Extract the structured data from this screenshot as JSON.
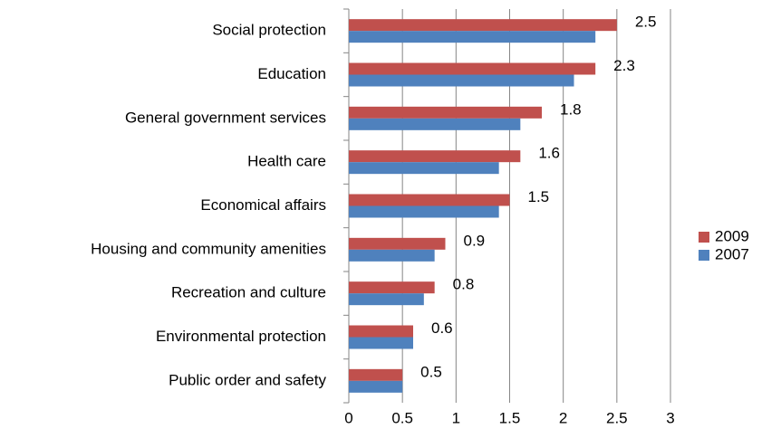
{
  "chart_data": {
    "type": "hbar",
    "categories": [
      "Social protection",
      "Education",
      "General government services",
      "Health care",
      "Economical affairs",
      "Housing and community  amenities",
      "Recreation and culture",
      "Environmental protection",
      "Public order and safety"
    ],
    "series": [
      {
        "name": "2009",
        "color": "#c0504d",
        "values": [
          2.5,
          2.3,
          1.8,
          1.6,
          1.5,
          0.9,
          0.8,
          0.6,
          0.5
        ],
        "show_labels": true
      },
      {
        "name": "2007",
        "color": "#4f81bd",
        "values": [
          2.3,
          2.1,
          1.6,
          1.4,
          1.4,
          0.8,
          0.7,
          0.6,
          0.5
        ],
        "show_labels": false
      }
    ],
    "xlim": [
      0,
      3
    ],
    "xticks": [
      0,
      0.5,
      1,
      1.5,
      2,
      2.5,
      3
    ],
    "grid": true,
    "legend": "right"
  }
}
